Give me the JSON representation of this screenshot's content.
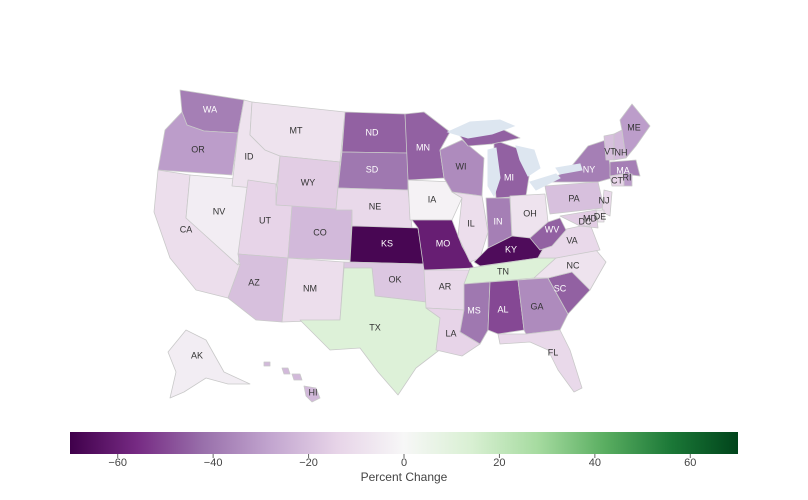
{
  "map": {
    "states": [
      {
        "code": "WA",
        "value": -38
      },
      {
        "code": "OR",
        "value": -30
      },
      {
        "code": "CA",
        "value": -10
      },
      {
        "code": "NV",
        "value": -4
      },
      {
        "code": "ID",
        "value": -8
      },
      {
        "code": "MT",
        "value": -8
      },
      {
        "code": "WY",
        "value": -16
      },
      {
        "code": "UT",
        "value": -14
      },
      {
        "code": "AZ",
        "value": -20
      },
      {
        "code": "CO",
        "value": -22
      },
      {
        "code": "NM",
        "value": -10
      },
      {
        "code": "ND",
        "value": -45
      },
      {
        "code": "SD",
        "value": -40
      },
      {
        "code": "NE",
        "value": -12
      },
      {
        "code": "KS",
        "value": -68
      },
      {
        "code": "OK",
        "value": -18
      },
      {
        "code": "TX",
        "value": 12
      },
      {
        "code": "MN",
        "value": -45
      },
      {
        "code": "IA",
        "value": -2
      },
      {
        "code": "MO",
        "value": -60
      },
      {
        "code": "AR",
        "value": -12
      },
      {
        "code": "LA",
        "value": -14
      },
      {
        "code": "WI",
        "value": -35
      },
      {
        "code": "IL",
        "value": -10
      },
      {
        "code": "IN",
        "value": -38
      },
      {
        "code": "MI",
        "value": -45
      },
      {
        "code": "OH",
        "value": -8
      },
      {
        "code": "KY",
        "value": -66
      },
      {
        "code": "TN",
        "value": 12
      },
      {
        "code": "MS",
        "value": -40
      },
      {
        "code": "AL",
        "value": -50
      },
      {
        "code": "GA",
        "value": -35
      },
      {
        "code": "FL",
        "value": -12
      },
      {
        "code": "SC",
        "value": -45
      },
      {
        "code": "NC",
        "value": -8
      },
      {
        "code": "VA",
        "value": -12
      },
      {
        "code": "WV",
        "value": -45
      },
      {
        "code": "PA",
        "value": -20
      },
      {
        "code": "NY",
        "value": -38
      },
      {
        "code": "VT",
        "value": -20
      },
      {
        "code": "NH",
        "value": -22
      },
      {
        "code": "ME",
        "value": -30
      },
      {
        "code": "MA",
        "value": -38
      },
      {
        "code": "CT",
        "value": -14
      },
      {
        "code": "RI",
        "value": -30
      },
      {
        "code": "NJ",
        "value": -12
      },
      {
        "code": "DE",
        "value": -8
      },
      {
        "code": "MD",
        "value": -16
      },
      {
        "code": "DC",
        "value": -10
      },
      {
        "code": "AK",
        "value": -4
      },
      {
        "code": "HI",
        "value": -22
      }
    ]
  },
  "colorbar": {
    "title": "Percent Change",
    "min": -70,
    "max": 70,
    "ticks": [
      {
        "value": -60,
        "label": "−60"
      },
      {
        "value": -40,
        "label": "−40"
      },
      {
        "value": -20,
        "label": "−20"
      },
      {
        "value": 0,
        "label": "0"
      },
      {
        "value": 20,
        "label": "20"
      },
      {
        "value": 40,
        "label": "40"
      },
      {
        "value": 60,
        "label": "60"
      }
    ],
    "colorscale": [
      "#40004b",
      "#762a83",
      "#9970ab",
      "#c2a5cf",
      "#e7d4e8",
      "#f7f7f7",
      "#d9f0d3",
      "#a6dba0",
      "#5aae61",
      "#1b7837",
      "#00441b"
    ]
  },
  "colors": {
    "lake": "#dde6f0",
    "border": "#c9c9c9"
  }
}
